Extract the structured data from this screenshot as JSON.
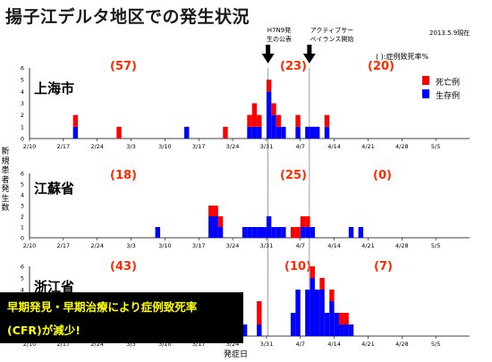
{
  "title": "揚子江デルタ地区での発生状況",
  "date_note": "2013.5.9現在",
  "cfr_note": "( ):症例致死率%",
  "annotations": {
    "h7n9_announce": [
      "H7N9発",
      "生の公表"
    ],
    "surveillance": [
      "アクティブサー",
      "ベイランス開始"
    ]
  },
  "y_axis_label": "新規患者発生数",
  "x_axis_label": "発症日",
  "legend": {
    "dead": "死亡例",
    "alive": "生存例"
  },
  "callout": {
    "line1": "早期発見・早期治療により症例致死率",
    "line2": "(CFR)が減少!"
  },
  "colors": {
    "dead": "#ff0000",
    "alive": "#0000ff",
    "callout_bg": "#000000",
    "callout_text": "#ffff00",
    "cfr_text": "#ff2a00"
  },
  "chart_data": [
    {
      "type": "bar",
      "stacked": true,
      "region": "上海市",
      "cfr_labels": [
        "(57)",
        "(23)",
        "(20)"
      ],
      "x_tick_labels": [
        "2/10",
        "2/17",
        "2/24",
        "3/3",
        "3/10",
        "3/17",
        "3/24",
        "3/31",
        "4/7",
        "4/14",
        "4/21",
        "4/28",
        "5/5"
      ],
      "y_ticks": [
        0,
        1,
        2,
        3,
        4,
        5,
        6
      ],
      "ylim": [
        0,
        6
      ],
      "series": [
        {
          "name": "死亡例",
          "color": "#ff0000",
          "x": [
            "2/19",
            "2/28",
            "3/22",
            "3/27",
            "3/28",
            "3/29",
            "3/31",
            "4/1",
            "4/2",
            "4/6",
            "4/12"
          ],
          "values": [
            1,
            1,
            1,
            1,
            2,
            1,
            1,
            1,
            1,
            1,
            1
          ]
        },
        {
          "name": "生存例",
          "color": "#0000ff",
          "x": [
            "2/19",
            "3/14",
            "3/27",
            "3/28",
            "3/29",
            "3/31",
            "4/1",
            "4/2",
            "4/3",
            "4/6",
            "4/8",
            "4/9",
            "4/10",
            "4/12"
          ],
          "values": [
            1,
            1,
            1,
            1,
            1,
            4,
            2,
            1,
            1,
            1,
            1,
            1,
            1,
            1
          ]
        }
      ]
    },
    {
      "type": "bar",
      "stacked": true,
      "region": "江蘇省",
      "cfr_labels": [
        "(18)",
        "(25)",
        "(0)"
      ],
      "x_tick_labels": [
        "2/10",
        "2/17",
        "2/24",
        "3/3",
        "3/10",
        "3/17",
        "3/24",
        "3/31",
        "4/7",
        "4/14",
        "4/21",
        "4/28",
        "5/5"
      ],
      "y_ticks": [
        0,
        1,
        2,
        3,
        4,
        5,
        6
      ],
      "ylim": [
        0,
        6
      ],
      "series": [
        {
          "name": "死亡例",
          "color": "#ff0000",
          "x": [
            "3/19",
            "3/20",
            "3/21",
            "4/5",
            "4/6",
            "4/7",
            "4/8"
          ],
          "values": [
            1,
            1,
            1,
            1,
            1,
            1,
            1
          ]
        },
        {
          "name": "生存例",
          "color": "#0000ff",
          "x": [
            "3/8",
            "3/19",
            "3/20",
            "3/21",
            "3/26",
            "3/27",
            "3/28",
            "3/29",
            "3/30",
            "3/31",
            "4/1",
            "4/2",
            "4/3",
            "4/4",
            "4/6",
            "4/7",
            "4/8",
            "4/9",
            "4/17",
            "4/19"
          ],
          "values": [
            1,
            2,
            2,
            1,
            1,
            1,
            1,
            1,
            1,
            2,
            1,
            1,
            1,
            0,
            0,
            1,
            1,
            1,
            1,
            1
          ]
        }
      ]
    },
    {
      "type": "bar",
      "stacked": true,
      "region": "浙江省",
      "cfr_labels": [
        "(43)",
        "(10)",
        "(7)"
      ],
      "x_tick_labels": [
        "2/10",
        "2/17",
        "2/24",
        "3/3",
        "3/10",
        "3/17",
        "3/24",
        "3/31",
        "4/7",
        "4/14",
        "4/21",
        "4/28",
        "5/5"
      ],
      "y_ticks": [
        0,
        1,
        2,
        3,
        4,
        5,
        6
      ],
      "ylim": [
        0,
        6
      ],
      "series": [
        {
          "name": "死亡例",
          "color": "#ff0000",
          "x": [
            "3/29",
            "4/9",
            "4/11",
            "4/13",
            "4/15",
            "4/16"
          ],
          "values": [
            2,
            1,
            1,
            1,
            1,
            1
          ]
        },
        {
          "name": "生存例",
          "color": "#0000ff",
          "x": [
            "3/26",
            "3/29",
            "4/5",
            "4/6",
            "4/8",
            "4/9",
            "4/10",
            "4/11",
            "4/12",
            "4/13",
            "4/14",
            "4/15",
            "4/16",
            "4/17"
          ],
          "values": [
            1,
            1,
            2,
            4,
            4,
            5,
            4,
            4,
            2,
            3,
            2,
            1,
            1,
            1
          ]
        }
      ]
    }
  ]
}
